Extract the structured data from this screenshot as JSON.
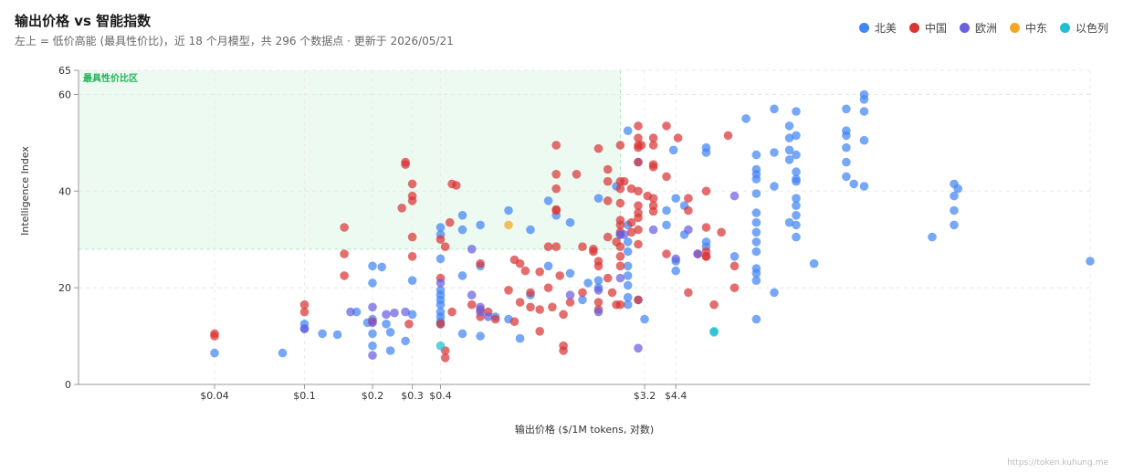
{
  "header": {
    "title": "输出价格 vs 智能指数",
    "subtitle": "左上 = 低价高能 (最具性价比)，近 18 个月模型，共 296 个数据点 · 更新于 2026/05/21"
  },
  "credit": "https://token.kuhung.me",
  "chart_data": {
    "type": "scatter",
    "title": "输出价格 vs 智能指数",
    "xlabel": "输出价格 ($/1M tokens, 对数)",
    "ylabel": "Intelligence Index",
    "xscale": "log",
    "xlim": [
      0.01,
      300
    ],
    "ylim": [
      0,
      65
    ],
    "x_ticks": [
      {
        "value": 0.04,
        "label": "$0.04"
      },
      {
        "value": 0.1,
        "label": "$0.1"
      },
      {
        "value": 0.2,
        "label": "$0.2"
      },
      {
        "value": 0.3,
        "label": "$0.3"
      },
      {
        "value": 0.4,
        "label": "$0.4"
      },
      {
        "value": 3.2,
        "label": "$3.2"
      },
      {
        "value": 4.4,
        "label": "$4.4"
      }
    ],
    "y_ticks": [
      0,
      20,
      40,
      60,
      65
    ],
    "grid": true,
    "legend_position": "top-right",
    "highlight_region": {
      "label": "最具性价比区",
      "x_max": 2.5,
      "y_min": 28,
      "color": "#2ecc71"
    },
    "series": [
      {
        "name": "北美",
        "color": "#4285f4",
        "points": [
          [
            0.04,
            6.5
          ],
          [
            0.08,
            6.5
          ],
          [
            0.1,
            12.5
          ],
          [
            0.1,
            11.5
          ],
          [
            0.12,
            10.5
          ],
          [
            0.14,
            10.3
          ],
          [
            0.17,
            15
          ],
          [
            0.19,
            12.8
          ],
          [
            0.2,
            24.5
          ],
          [
            0.2,
            21
          ],
          [
            0.2,
            13.5
          ],
          [
            0.2,
            10.5
          ],
          [
            0.2,
            8
          ],
          [
            0.22,
            24.3
          ],
          [
            0.23,
            12.5
          ],
          [
            0.24,
            10.8
          ],
          [
            0.24,
            7
          ],
          [
            0.28,
            9
          ],
          [
            0.3,
            21.5
          ],
          [
            0.3,
            14.5
          ],
          [
            0.4,
            32.5
          ],
          [
            0.4,
            31
          ],
          [
            0.4,
            26
          ],
          [
            0.4,
            19.5
          ],
          [
            0.4,
            18.5
          ],
          [
            0.4,
            17.5
          ],
          [
            0.4,
            16.5
          ],
          [
            0.4,
            15
          ],
          [
            0.4,
            14
          ],
          [
            0.4,
            13
          ],
          [
            0.4,
            12.5
          ],
          [
            0.5,
            35
          ],
          [
            0.5,
            32
          ],
          [
            0.5,
            22.5
          ],
          [
            0.5,
            10.5
          ],
          [
            0.6,
            33
          ],
          [
            0.6,
            24.5
          ],
          [
            0.6,
            10
          ],
          [
            0.7,
            14
          ],
          [
            0.8,
            36
          ],
          [
            0.8,
            13.5
          ],
          [
            0.9,
            9.5
          ],
          [
            1.0,
            32
          ],
          [
            1.0,
            18.5
          ],
          [
            1.2,
            38
          ],
          [
            1.2,
            24.5
          ],
          [
            1.3,
            35
          ],
          [
            1.5,
            33.5
          ],
          [
            1.5,
            23
          ],
          [
            1.7,
            17.5
          ],
          [
            1.8,
            21
          ],
          [
            2.0,
            38.5
          ],
          [
            2.0,
            21.5
          ],
          [
            2.0,
            20
          ],
          [
            2.4,
            41
          ],
          [
            2.5,
            31
          ],
          [
            2.7,
            52.5
          ],
          [
            2.7,
            33
          ],
          [
            2.7,
            29.5
          ],
          [
            2.7,
            27.5
          ],
          [
            2.7,
            24.5
          ],
          [
            2.7,
            22.5
          ],
          [
            2.7,
            20.5
          ],
          [
            2.7,
            18
          ],
          [
            2.7,
            16.5
          ],
          [
            3.0,
            46
          ],
          [
            3.0,
            17.5
          ],
          [
            3.2,
            13.5
          ],
          [
            4.0,
            36
          ],
          [
            4.0,
            33
          ],
          [
            4.3,
            48.5
          ],
          [
            4.4,
            38.5
          ],
          [
            4.4,
            25.5
          ],
          [
            4.4,
            23.5
          ],
          [
            4.8,
            37
          ],
          [
            4.8,
            31
          ],
          [
            6.0,
            49
          ],
          [
            6.0,
            48
          ],
          [
            6.0,
            29.5
          ],
          [
            6.0,
            28.5
          ],
          [
            8.0,
            26.5
          ],
          [
            9.0,
            55
          ],
          [
            10.0,
            47.5
          ],
          [
            10.0,
            44.5
          ],
          [
            10.0,
            43.5
          ],
          [
            10.0,
            42.5
          ],
          [
            10.0,
            39.5
          ],
          [
            10.0,
            35.5
          ],
          [
            10.0,
            33.5
          ],
          [
            10.0,
            31.5
          ],
          [
            10.0,
            29.5
          ],
          [
            10.0,
            27.5
          ],
          [
            10.0,
            24
          ],
          [
            10.0,
            23
          ],
          [
            10.0,
            21.5
          ],
          [
            10.0,
            13.5
          ],
          [
            12.0,
            57
          ],
          [
            12.0,
            48
          ],
          [
            12.0,
            41
          ],
          [
            12.0,
            19
          ],
          [
            14.0,
            53.5
          ],
          [
            14.0,
            51
          ],
          [
            14.0,
            48.5
          ],
          [
            14.0,
            46.5
          ],
          [
            14.0,
            33.5
          ],
          [
            15.0,
            56.5
          ],
          [
            15.0,
            51.5
          ],
          [
            15.0,
            47.5
          ],
          [
            15.0,
            44
          ],
          [
            15.0,
            42.5
          ],
          [
            15.0,
            42
          ],
          [
            15.0,
            38.5
          ],
          [
            15.0,
            37
          ],
          [
            15.0,
            35
          ],
          [
            15.0,
            33
          ],
          [
            15.0,
            30.5
          ],
          [
            18.0,
            25
          ],
          [
            25.0,
            57
          ],
          [
            25.0,
            52.5
          ],
          [
            25.0,
            51.5
          ],
          [
            25.0,
            49
          ],
          [
            25.0,
            46
          ],
          [
            25.0,
            43
          ],
          [
            27.0,
            41.5
          ],
          [
            30.0,
            60
          ],
          [
            30.0,
            59
          ],
          [
            30.0,
            56.5
          ],
          [
            30.0,
            50.5
          ],
          [
            30.0,
            41
          ],
          [
            60.0,
            30.5
          ],
          [
            75.0,
            41.5
          ],
          [
            75.0,
            39
          ],
          [
            75.0,
            36
          ],
          [
            75.0,
            33
          ],
          [
            78.0,
            40.5
          ],
          [
            300.0,
            25.5
          ]
        ]
      },
      {
        "name": "中国",
        "color": "#d93636",
        "points": [
          [
            0.04,
            10.5
          ],
          [
            0.04,
            10
          ],
          [
            0.1,
            16.5
          ],
          [
            0.1,
            15
          ],
          [
            0.15,
            32.5
          ],
          [
            0.15,
            27
          ],
          [
            0.15,
            22.5
          ],
          [
            0.2,
            13
          ],
          [
            0.28,
            46
          ],
          [
            0.28,
            45.5
          ],
          [
            0.27,
            36.5
          ],
          [
            0.3,
            41.5
          ],
          [
            0.3,
            39
          ],
          [
            0.3,
            38
          ],
          [
            0.3,
            30.5
          ],
          [
            0.3,
            26.5
          ],
          [
            0.29,
            12.5
          ],
          [
            0.4,
            30
          ],
          [
            0.4,
            22
          ],
          [
            0.4,
            12.5
          ],
          [
            0.42,
            28.5
          ],
          [
            0.42,
            7
          ],
          [
            0.42,
            5.5
          ],
          [
            0.44,
            33.5
          ],
          [
            0.45,
            41.5
          ],
          [
            0.47,
            41.2
          ],
          [
            0.45,
            15
          ],
          [
            0.55,
            16.5
          ],
          [
            0.6,
            25
          ],
          [
            0.6,
            15.5
          ],
          [
            0.6,
            14
          ],
          [
            0.65,
            15
          ],
          [
            0.7,
            13.5
          ],
          [
            0.8,
            19.5
          ],
          [
            0.85,
            25.8
          ],
          [
            0.85,
            13
          ],
          [
            0.9,
            17
          ],
          [
            0.9,
            25
          ],
          [
            0.95,
            23.5
          ],
          [
            1.0,
            19
          ],
          [
            1.0,
            16
          ],
          [
            1.1,
            23.3
          ],
          [
            1.1,
            15.5
          ],
          [
            1.1,
            11
          ],
          [
            1.2,
            28.5
          ],
          [
            1.2,
            20
          ],
          [
            1.25,
            16
          ],
          [
            1.3,
            49.5
          ],
          [
            1.3,
            43.5
          ],
          [
            1.3,
            40.5
          ],
          [
            1.3,
            36.2
          ],
          [
            1.3,
            36
          ],
          [
            1.3,
            28.5
          ],
          [
            1.35,
            22.5
          ],
          [
            1.4,
            8
          ],
          [
            1.4,
            7
          ],
          [
            1.4,
            14.5
          ],
          [
            1.5,
            17
          ],
          [
            1.6,
            43.5
          ],
          [
            1.7,
            28.5
          ],
          [
            1.7,
            19
          ],
          [
            1.9,
            28
          ],
          [
            1.9,
            27.5
          ],
          [
            2.0,
            48.8
          ],
          [
            2.0,
            25.5
          ],
          [
            2.0,
            24.5
          ],
          [
            2.0,
            17
          ],
          [
            2.0,
            15.5
          ],
          [
            2.2,
            44.5
          ],
          [
            2.2,
            42
          ],
          [
            2.2,
            38
          ],
          [
            2.2,
            30.5
          ],
          [
            2.2,
            22
          ],
          [
            2.3,
            19
          ],
          [
            2.4,
            29.5
          ],
          [
            2.4,
            16.5
          ],
          [
            2.5,
            49.5
          ],
          [
            2.5,
            42
          ],
          [
            2.5,
            40.5
          ],
          [
            2.5,
            37.5
          ],
          [
            2.5,
            34
          ],
          [
            2.5,
            33
          ],
          [
            2.5,
            31.5
          ],
          [
            2.5,
            28.5
          ],
          [
            2.5,
            26.5
          ],
          [
            2.5,
            24.5
          ],
          [
            2.5,
            16.5
          ],
          [
            2.6,
            42
          ],
          [
            2.8,
            40.5
          ],
          [
            2.8,
            33.5
          ],
          [
            2.8,
            31.5
          ],
          [
            3.0,
            53.5
          ],
          [
            3.0,
            51
          ],
          [
            3.0,
            49.5
          ],
          [
            3.0,
            49
          ],
          [
            3.0,
            46
          ],
          [
            3.0,
            40
          ],
          [
            3.0,
            37
          ],
          [
            3.0,
            35.5
          ],
          [
            3.0,
            34.5
          ],
          [
            3.0,
            32
          ],
          [
            3.0,
            29
          ],
          [
            3.0,
            17.5
          ],
          [
            3.1,
            49.5
          ],
          [
            3.3,
            39
          ],
          [
            3.5,
            51
          ],
          [
            3.5,
            49.5
          ],
          [
            3.5,
            45.5
          ],
          [
            3.5,
            45
          ],
          [
            3.5,
            38.5
          ],
          [
            3.5,
            37
          ],
          [
            3.5,
            35.8
          ],
          [
            4.0,
            53.5
          ],
          [
            4.0,
            43
          ],
          [
            4.0,
            27
          ],
          [
            4.5,
            51
          ],
          [
            5.0,
            38.5
          ],
          [
            5.0,
            36
          ],
          [
            5.0,
            19
          ],
          [
            5.5,
            27
          ],
          [
            6.0,
            40
          ],
          [
            6.0,
            32.5
          ],
          [
            6.0,
            27.5
          ],
          [
            6.0,
            26.5
          ],
          [
            6.0,
            26.5
          ],
          [
            6.5,
            16.5
          ],
          [
            7.0,
            31.5
          ],
          [
            7.5,
            51.5
          ],
          [
            8.0,
            24.5
          ],
          [
            8.0,
            20
          ]
        ]
      },
      {
        "name": "欧洲",
        "color": "#6a60e0",
        "points": [
          [
            0.1,
            11.5
          ],
          [
            0.16,
            15
          ],
          [
            0.2,
            16
          ],
          [
            0.2,
            6
          ],
          [
            0.2,
            12.8
          ],
          [
            0.23,
            14.5
          ],
          [
            0.25,
            14.8
          ],
          [
            0.28,
            15
          ],
          [
            0.4,
            21
          ],
          [
            0.55,
            28
          ],
          [
            0.55,
            18.5
          ],
          [
            0.6,
            15
          ],
          [
            0.6,
            16
          ],
          [
            0.65,
            14
          ],
          [
            1.5,
            18.5
          ],
          [
            2.0,
            19.5
          ],
          [
            2.0,
            15
          ],
          [
            2.5,
            31
          ],
          [
            2.5,
            22
          ],
          [
            2.6,
            31
          ],
          [
            3.0,
            7.5
          ],
          [
            3.5,
            32
          ],
          [
            4.4,
            26
          ],
          [
            5.0,
            32
          ],
          [
            5.5,
            27
          ],
          [
            8.0,
            39
          ]
        ]
      },
      {
        "name": "中东",
        "color": "#f5a623",
        "points": [
          [
            0.8,
            33
          ]
        ]
      },
      {
        "name": "以色列",
        "color": "#1fbfcf",
        "points": [
          [
            0.4,
            8
          ],
          [
            6.5,
            11
          ],
          [
            6.5,
            10.8
          ]
        ]
      }
    ]
  },
  "legend": [
    {
      "name": "北美",
      "color": "#4285f4"
    },
    {
      "name": "中国",
      "color": "#d93636"
    },
    {
      "name": "欧洲",
      "color": "#6a60e0"
    },
    {
      "name": "中东",
      "color": "#f5a623"
    },
    {
      "name": "以色列",
      "color": "#1fbfcf"
    }
  ]
}
